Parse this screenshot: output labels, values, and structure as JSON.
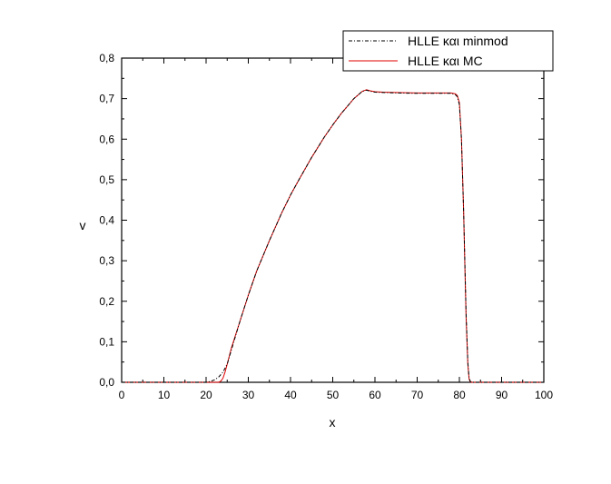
{
  "chart_data": {
    "type": "line",
    "title": "",
    "xlabel": "x",
    "ylabel": "v",
    "xlim": [
      0,
      100
    ],
    "ylim": [
      0,
      0.8
    ],
    "x_ticks": [
      "0",
      "10",
      "20",
      "30",
      "40",
      "50",
      "60",
      "70",
      "80",
      "90",
      "100"
    ],
    "y_ticks": [
      "0,0",
      "0,1",
      "0,2",
      "0,3",
      "0,4",
      "0,5",
      "0,6",
      "0,7",
      "0,8"
    ],
    "grid": false,
    "legend_position": "top-right",
    "series": [
      {
        "name": "HLLE και minmod",
        "color": "#000000",
        "style": "dash-dot",
        "x": [
          0,
          20,
          21,
          22,
          23,
          24,
          25,
          26,
          28,
          30,
          32,
          35,
          38,
          40,
          42,
          45,
          48,
          50,
          52,
          55,
          57,
          58,
          59,
          60,
          62,
          65,
          70,
          75,
          78,
          79,
          79.5,
          80,
          80.5,
          81,
          81.3,
          81.6,
          82,
          82.3,
          82.6,
          83,
          90,
          100
        ],
        "y": [
          0,
          0,
          0.002,
          0.006,
          0.013,
          0.025,
          0.045,
          0.08,
          0.15,
          0.215,
          0.275,
          0.35,
          0.42,
          0.462,
          0.5,
          0.555,
          0.605,
          0.635,
          0.663,
          0.7,
          0.718,
          0.721,
          0.718,
          0.716,
          0.715,
          0.714,
          0.713,
          0.713,
          0.713,
          0.71,
          0.705,
          0.685,
          0.6,
          0.42,
          0.3,
          0.17,
          0.05,
          0.01,
          0.002,
          0,
          0,
          0
        ]
      },
      {
        "name": "HLLE και MC",
        "color": "#e00000",
        "style": "solid",
        "x": [
          0,
          23,
          23.5,
          24,
          24.5,
          25,
          26,
          28,
          30,
          32,
          35,
          38,
          40,
          42,
          45,
          48,
          50,
          52,
          55,
          57,
          58,
          59,
          60,
          62,
          65,
          70,
          75,
          78,
          79,
          79.5,
          80,
          80.5,
          81,
          81.3,
          81.6,
          82,
          82.3,
          82.6,
          83,
          90,
          100
        ],
        "y": [
          0,
          0,
          0.003,
          0.01,
          0.025,
          0.045,
          0.085,
          0.15,
          0.215,
          0.275,
          0.35,
          0.42,
          0.462,
          0.5,
          0.555,
          0.605,
          0.635,
          0.663,
          0.7,
          0.718,
          0.722,
          0.719,
          0.717,
          0.716,
          0.715,
          0.714,
          0.714,
          0.714,
          0.712,
          0.708,
          0.69,
          0.6,
          0.42,
          0.29,
          0.16,
          0.045,
          0.008,
          0.001,
          0,
          0,
          0
        ]
      }
    ]
  }
}
